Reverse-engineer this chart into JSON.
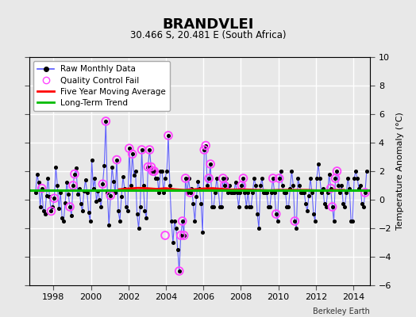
{
  "title": "BRANDVLEI",
  "subtitle": "30.466 S, 20.481 E (South Africa)",
  "ylabel": "Temperature Anomaly (°C)",
  "credit": "Berkeley Earth",
  "ylim": [
    -6,
    10
  ],
  "yticks": [
    -6,
    -4,
    -2,
    0,
    2,
    4,
    6,
    8,
    10
  ],
  "xlim_start": 1996.7,
  "xlim_end": 2014.9,
  "xticks": [
    1998,
    2000,
    2002,
    2004,
    2006,
    2008,
    2010,
    2012,
    2014
  ],
  "bg_color": "#e8e8e8",
  "plot_bg_color": "#e8e8e8",
  "grid_color": "#ffffff",
  "raw_color": "#5555ff",
  "raw_dot_color": "#000000",
  "qc_fail_color": "#ff44ff",
  "moving_avg_color": "#ff0000",
  "trend_color": "#00bb00",
  "trend_value": 0.68,
  "raw_x": [
    1997.042,
    1997.125,
    1997.208,
    1997.292,
    1997.375,
    1997.458,
    1997.542,
    1997.625,
    1997.708,
    1997.792,
    1997.875,
    1997.958,
    1998.042,
    1998.125,
    1998.208,
    1998.292,
    1998.375,
    1998.458,
    1998.542,
    1998.625,
    1998.708,
    1998.792,
    1998.875,
    1998.958,
    1999.042,
    1999.125,
    1999.208,
    1999.292,
    1999.375,
    1999.458,
    1999.542,
    1999.625,
    1999.708,
    1999.792,
    1999.875,
    1999.958,
    2000.042,
    2000.125,
    2000.208,
    2000.292,
    2000.375,
    2000.458,
    2000.542,
    2000.625,
    2000.708,
    2000.792,
    2000.875,
    2000.958,
    2001.042,
    2001.125,
    2001.208,
    2001.292,
    2001.375,
    2001.458,
    2001.542,
    2001.625,
    2001.708,
    2001.792,
    2001.875,
    2001.958,
    2002.042,
    2002.125,
    2002.208,
    2002.292,
    2002.375,
    2002.458,
    2002.542,
    2002.625,
    2002.708,
    2002.792,
    2002.875,
    2002.958,
    2003.042,
    2003.125,
    2003.208,
    2003.292,
    2003.375,
    2003.458,
    2003.542,
    2003.625,
    2003.708,
    2003.792,
    2003.875,
    2003.958,
    2004.042,
    2004.125,
    2004.208,
    2004.292,
    2004.375,
    2004.458,
    2004.542,
    2004.625,
    2004.708,
    2004.792,
    2004.875,
    2004.958,
    2005.042,
    2005.125,
    2005.208,
    2005.292,
    2005.375,
    2005.458,
    2005.542,
    2005.625,
    2005.708,
    2005.792,
    2005.875,
    2005.958,
    2006.042,
    2006.125,
    2006.208,
    2006.292,
    2006.375,
    2006.458,
    2006.542,
    2006.625,
    2006.708,
    2006.792,
    2006.875,
    2006.958,
    2007.042,
    2007.125,
    2007.208,
    2007.292,
    2007.375,
    2007.458,
    2007.542,
    2007.625,
    2007.708,
    2007.792,
    2007.875,
    2007.958,
    2008.042,
    2008.125,
    2008.208,
    2008.292,
    2008.375,
    2008.458,
    2008.542,
    2008.625,
    2008.708,
    2008.792,
    2008.875,
    2008.958,
    2009.042,
    2009.125,
    2009.208,
    2009.292,
    2009.375,
    2009.458,
    2009.542,
    2009.625,
    2009.708,
    2009.792,
    2009.875,
    2009.958,
    2010.042,
    2010.125,
    2010.208,
    2010.292,
    2010.375,
    2010.458,
    2010.542,
    2010.625,
    2010.708,
    2010.792,
    2010.875,
    2010.958,
    2011.042,
    2011.125,
    2011.208,
    2011.292,
    2011.375,
    2011.458,
    2011.542,
    2011.625,
    2011.708,
    2011.792,
    2011.875,
    2011.958,
    2012.042,
    2012.125,
    2012.208,
    2012.292,
    2012.375,
    2012.458,
    2012.542,
    2012.625,
    2012.708,
    2012.792,
    2012.875,
    2012.958,
    2013.042,
    2013.125,
    2013.208,
    2013.292,
    2013.375,
    2013.458,
    2013.542,
    2013.625,
    2013.708,
    2013.792,
    2013.875,
    2013.958,
    2014.042,
    2014.125,
    2014.208,
    2014.292,
    2014.375,
    2014.458,
    2014.542,
    2014.625,
    2014.708
  ],
  "raw_y": [
    0.5,
    1.8,
    1.2,
    -0.5,
    0.8,
    -0.8,
    -1.0,
    0.3,
    1.5,
    0.2,
    -0.8,
    -0.5,
    0.1,
    2.3,
    1.0,
    -0.6,
    0.5,
    -1.3,
    -1.5,
    -0.2,
    1.2,
    0.4,
    -0.5,
    -1.1,
    1.0,
    1.8,
    2.2,
    0.4,
    0.8,
    -0.3,
    -0.8,
    0.6,
    1.4,
    0.5,
    -0.9,
    -1.5,
    2.8,
    0.8,
    1.5,
    -0.1,
    0.6,
    0.0,
    -0.5,
    1.1,
    2.4,
    5.5,
    0.5,
    -1.8,
    0.3,
    2.3,
    1.3,
    0.5,
    2.8,
    -0.8,
    -1.5,
    0.2,
    1.6,
    0.8,
    -0.5,
    -0.8,
    3.6,
    1.0,
    3.2,
    1.7,
    2.0,
    -1.0,
    -2.0,
    -0.5,
    3.5,
    1.0,
    -0.8,
    -1.3,
    2.3,
    3.5,
    2.3,
    2.0,
    2.0,
    1.5,
    1.5,
    0.5,
    2.0,
    2.0,
    0.5,
    1.5,
    2.0,
    4.5,
    1.0,
    -1.5,
    -3.0,
    -1.5,
    -2.0,
    -3.5,
    -5.0,
    -2.5,
    -1.5,
    -2.5,
    1.5,
    0.5,
    1.5,
    0.5,
    0.8,
    -0.3,
    -1.5,
    0.2,
    1.3,
    0.8,
    -0.3,
    -2.3,
    3.5,
    3.8,
    1.0,
    1.5,
    2.5,
    -0.5,
    -0.5,
    0.5,
    1.5,
    0.7,
    -0.5,
    -0.5,
    1.5,
    1.0,
    1.5,
    0.5,
    1.0,
    0.5,
    0.5,
    0.5,
    1.2,
    0.5,
    -0.5,
    0.5,
    1.0,
    1.5,
    0.5,
    -0.5,
    0.5,
    -0.5,
    -0.5,
    0.5,
    1.5,
    1.0,
    -1.0,
    -2.0,
    1.0,
    1.5,
    0.5,
    0.5,
    0.5,
    -0.5,
    -0.5,
    0.5,
    1.5,
    0.5,
    -1.0,
    -1.5,
    1.5,
    2.0,
    1.0,
    0.5,
    0.5,
    -0.5,
    -0.5,
    0.8,
    2.0,
    1.0,
    -1.5,
    -2.0,
    1.5,
    1.0,
    0.5,
    0.5,
    0.5,
    -0.3,
    -0.8,
    0.3,
    1.5,
    0.5,
    -1.0,
    -1.5,
    1.5,
    2.5,
    1.5,
    0.5,
    0.8,
    -0.3,
    -0.5,
    0.5,
    1.8,
    0.8,
    -0.5,
    -1.5,
    1.5,
    2.0,
    1.0,
    0.5,
    1.0,
    -0.3,
    -0.5,
    0.5,
    1.5,
    0.8,
    -1.5,
    -1.5,
    1.5,
    2.0,
    1.5,
    0.8,
    1.0,
    -0.3,
    -0.5,
    0.5,
    2.0
  ],
  "qc_fail_x": [
    1997.375,
    1997.875,
    1998.042,
    1998.875,
    1999.042,
    1999.125,
    2000.625,
    2000.792,
    2001.042,
    2001.375,
    2002.042,
    2002.208,
    2002.708,
    2003.042,
    2003.125,
    2003.208,
    2003.292,
    2003.375,
    2003.958,
    2004.125,
    2004.708,
    2004.792,
    2004.875,
    2004.958,
    2005.042,
    2005.292,
    2006.042,
    2006.125,
    2006.292,
    2006.375,
    2007.042,
    2007.125,
    2008.042,
    2008.125,
    2009.708,
    2009.875,
    2010.042,
    2010.875,
    2012.792,
    2012.875,
    2013.042,
    2013.125,
    2014.625
  ],
  "qc_fail_y": [
    0.8,
    -0.8,
    0.1,
    -0.5,
    1.0,
    1.8,
    1.1,
    5.5,
    0.3,
    2.8,
    3.6,
    3.2,
    3.5,
    2.3,
    3.5,
    2.3,
    2.0,
    2.0,
    -2.5,
    4.5,
    -5.0,
    -2.5,
    -1.5,
    -2.5,
    1.5,
    0.5,
    3.5,
    3.8,
    1.5,
    2.5,
    1.5,
    1.0,
    1.0,
    1.5,
    1.5,
    -1.0,
    1.5,
    -1.5,
    0.8,
    -0.5,
    1.5,
    2.0,
    0.5
  ],
  "moving_avg_x": [
    2001.5,
    2002.0,
    2002.5,
    2003.0,
    2003.5,
    2004.0,
    2004.5,
    2005.0,
    2005.5,
    2006.0,
    2006.5,
    2007.0,
    2007.5,
    2008.0,
    2008.5,
    2009.0,
    2009.5,
    2010.0,
    2010.5,
    2011.0,
    2011.5,
    2012.0,
    2012.5,
    2013.0,
    2013.5
  ],
  "moving_avg_y": [
    0.72,
    0.78,
    0.82,
    0.8,
    0.75,
    0.8,
    0.72,
    0.68,
    0.72,
    0.78,
    0.8,
    0.75,
    0.7,
    0.72,
    0.7,
    0.68,
    0.65,
    0.68,
    0.68,
    0.68,
    0.68,
    0.65,
    0.65,
    0.68,
    0.68
  ]
}
